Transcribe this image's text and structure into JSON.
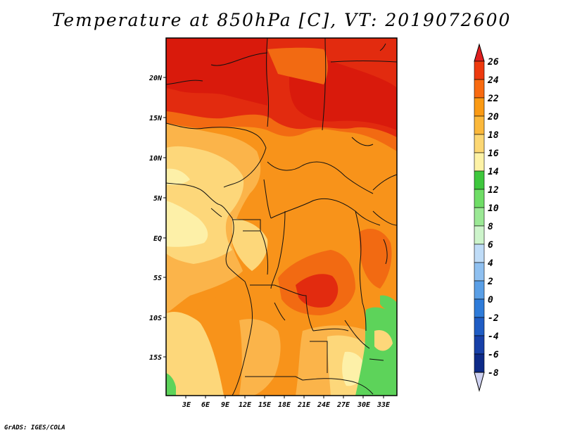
{
  "title": "Temperature at 850hPa [C], VT: 2019072600",
  "credit": "GrADS: IGES/COLA",
  "map": {
    "lat_labels": [
      "20N",
      "15N",
      "10N",
      "5N",
      "EQ",
      "5S",
      "10S",
      "15S"
    ],
    "lon_labels": [
      "3E",
      "6E",
      "9E",
      "12E",
      "15E",
      "18E",
      "21E",
      "24E",
      "27E",
      "30E",
      "33E"
    ]
  },
  "colorbar": {
    "labels": [
      "26",
      "24",
      "22",
      "20",
      "18",
      "16",
      "14",
      "12",
      "10",
      "8",
      "6",
      "4",
      "2",
      "0",
      "-2",
      "-4",
      "-6",
      "-8"
    ],
    "colors": {
      "top_arrow": "#e01f1f",
      "24": "#ee3a0f",
      "22": "#f86a10",
      "20": "#fa9a14",
      "18": "#fbb83b",
      "16": "#fcd773",
      "14": "#fdf2a6",
      "12": "#3ec73d",
      "10": "#6fdd66",
      "8": "#9be895",
      "6": "#cdf4cb",
      "4": "#bfdcf7",
      "2": "#8fc0f0",
      "0": "#5a9fe6",
      "-2": "#2e7bd9",
      "-4": "#1f5cc4",
      "-6": "#1740a8",
      "-8": "#0d2a88",
      "bottom_arrow": "#cfd2f2"
    }
  },
  "legend_colors": {
    "hot": "#e22b0f",
    "very_hot": "#d91a0c",
    "orange": "#f26a12",
    "light_orange": "#f8931a",
    "tan": "#fbb44a",
    "pale": "#fdd77a",
    "very_pale": "#fdf0a8",
    "green": "#5dd35a",
    "border": "#111111"
  }
}
